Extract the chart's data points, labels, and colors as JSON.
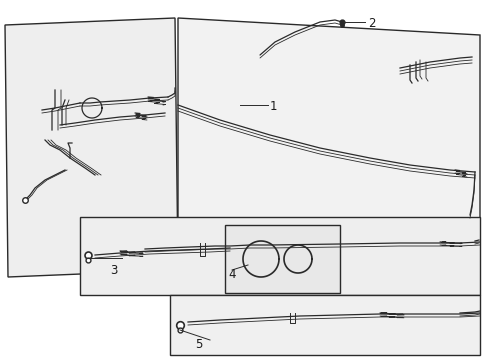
{
  "background_color": "#ffffff",
  "line_color": "#2a2a2a",
  "panel_edge_color": "#2a2a2a",
  "panel_fill": "#f0f0f0",
  "label_color": "#1a1a1a",
  "label_fontsize": 8.5,
  "figsize": [
    4.89,
    3.6
  ],
  "dpi": 100
}
